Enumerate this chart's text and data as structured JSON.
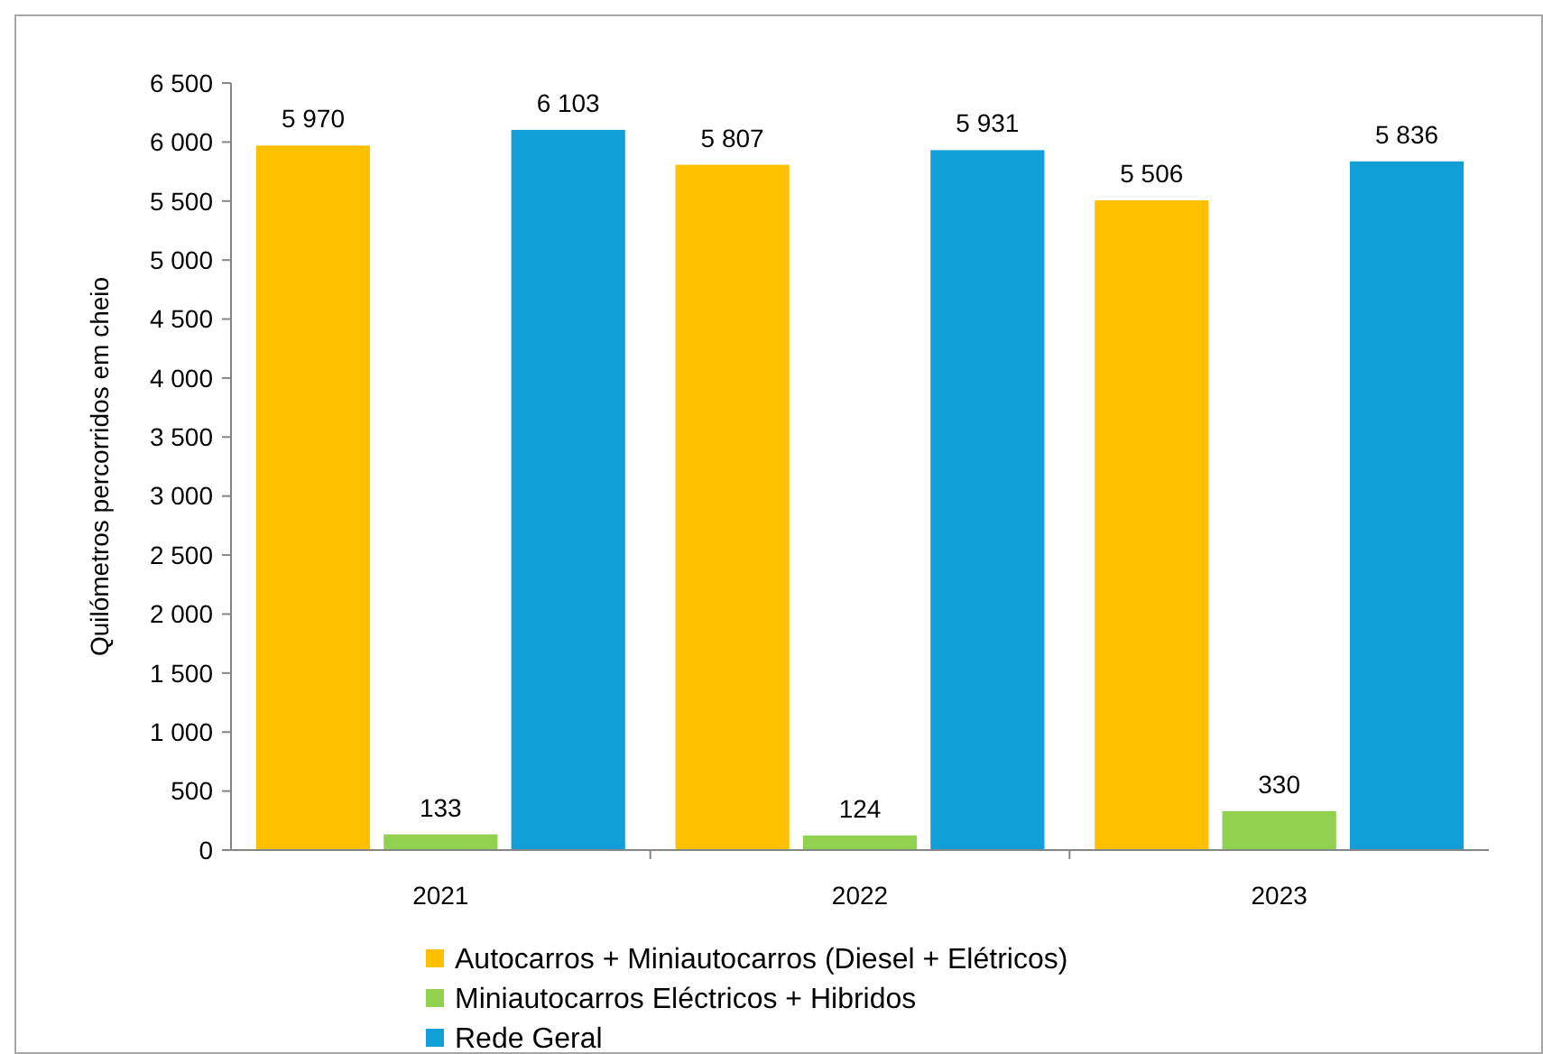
{
  "chart_data": {
    "type": "bar",
    "ylabel": "Quilómetros percorridos em cheio",
    "categories": [
      "2021",
      "2022",
      "2023"
    ],
    "series": [
      {
        "name": "Autocarros + Miniautocarros (Diesel + Elétricos)",
        "color": "#ffc000",
        "values": [
          5970,
          5807,
          5506
        ],
        "value_labels": [
          "5 970",
          "5 807",
          "5 506"
        ]
      },
      {
        "name": "Miniautocarros Eléctricos + Hibridos",
        "color": "#92d050",
        "values": [
          133,
          124,
          330
        ],
        "value_labels": [
          "133",
          "124",
          "330"
        ]
      },
      {
        "name": "Rede Geral",
        "color": "#129fd8",
        "values": [
          6103,
          5931,
          5836
        ],
        "value_labels": [
          "6 103",
          "5 931",
          "5 836"
        ]
      }
    ],
    "ylim": [
      0,
      6500
    ],
    "yticks": [
      0,
      {
        "value": 500,
        "label": "500"
      },
      {
        "value": 1000,
        "label": "1 000"
      },
      {
        "value": 1500,
        "label": "1 500"
      },
      {
        "value": 2000,
        "label": "2 000"
      },
      {
        "value": 2500,
        "label": "2 500"
      },
      {
        "value": 3000,
        "label": "3 000"
      },
      {
        "value": 3500,
        "label": "3 500"
      },
      {
        "value": 4000,
        "label": "4 000"
      },
      {
        "value": 4500,
        "label": "4 500"
      },
      {
        "value": 5000,
        "label": "5 000"
      },
      {
        "value": 5500,
        "label": "5 500"
      },
      {
        "value": 6000,
        "label": "6 000"
      },
      {
        "value": 6500,
        "label": "6 500"
      }
    ],
    "grid": false,
    "legend": "bottom"
  }
}
